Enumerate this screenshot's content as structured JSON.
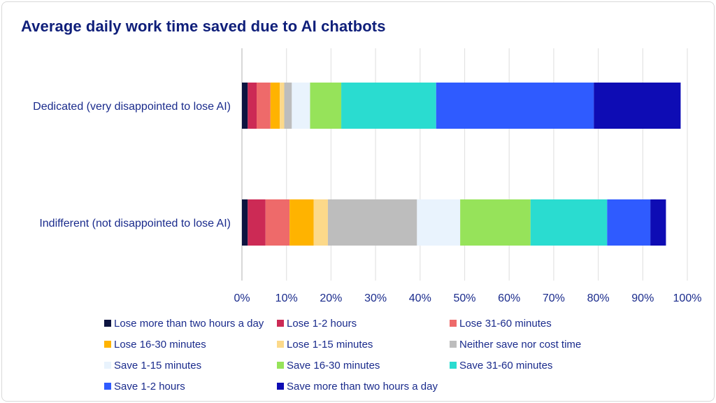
{
  "chart_data": {
    "type": "bar",
    "orientation": "horizontal",
    "stacked": true,
    "title": "Average daily work time saved due to AI chatbots",
    "categories": [
      "Dedicated (very disappointed to lose AI)",
      "Indifferent (not disappointed to lose AI)"
    ],
    "series": [
      {
        "name": "Lose more than two hours a day",
        "color": "#0d1440",
        "values": [
          1.3,
          1.3
        ]
      },
      {
        "name": "Lose 1-2 hours",
        "color": "#cc2a55",
        "values": [
          2.0,
          4.0
        ]
      },
      {
        "name": "Lose 31-60 minutes",
        "color": "#ee6a6a",
        "values": [
          3.1,
          5.4
        ]
      },
      {
        "name": "Lose 16-30 minutes",
        "color": "#ffb300",
        "values": [
          2.1,
          5.4
        ]
      },
      {
        "name": "Lose 1-15 minutes",
        "color": "#fcd98a",
        "values": [
          1.0,
          3.2
        ]
      },
      {
        "name": "Neither save nor cost time",
        "color": "#bdbdbd",
        "values": [
          1.7,
          20.0
        ]
      },
      {
        "name": "Save 1-15 minutes",
        "color": "#e9f3fd",
        "values": [
          4.1,
          9.7
        ]
      },
      {
        "name": "Save 16-30 minutes",
        "color": "#96e35a",
        "values": [
          7.0,
          15.8
        ]
      },
      {
        "name": "Save 31-60 minutes",
        "color": "#2adcd0",
        "values": [
          21.3,
          17.2
        ]
      },
      {
        "name": "Save 1-2 hours",
        "color": "#2f5bff",
        "values": [
          35.4,
          9.7
        ]
      },
      {
        "name": "Save more than two hours a day",
        "color": "#0e0cb4",
        "values": [
          19.5,
          3.5
        ]
      }
    ],
    "xlim": [
      0,
      100
    ],
    "xticks": [
      "0%",
      "10%",
      "20%",
      "30%",
      "40%",
      "50%",
      "60%",
      "70%",
      "80%",
      "90%",
      "100%"
    ],
    "grid": true,
    "legend_position": "bottom"
  }
}
